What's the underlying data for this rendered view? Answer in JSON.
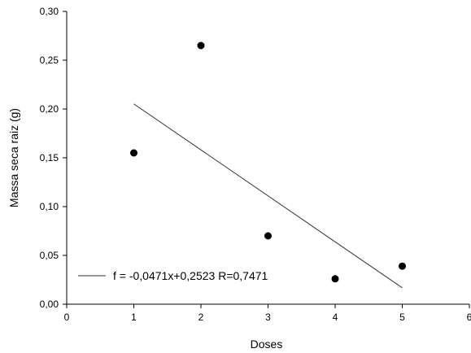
{
  "chart_data": {
    "type": "scatter",
    "xlabel": "Doses",
    "ylabel": "Massa seca raiz (g)",
    "xlim": [
      0,
      6
    ],
    "ylim": [
      0,
      0.3
    ],
    "x_ticks": [
      "0",
      "1",
      "2",
      "3",
      "4",
      "5",
      "6"
    ],
    "y_ticks": [
      "0,00",
      "0,05",
      "0,10",
      "0,15",
      "0,20",
      "0,25",
      "0,30"
    ],
    "points": [
      {
        "x": 1,
        "y": 0.155
      },
      {
        "x": 2,
        "y": 0.265
      },
      {
        "x": 3,
        "y": 0.07
      },
      {
        "x": 4,
        "y": 0.026
      },
      {
        "x": 5,
        "y": 0.039
      }
    ],
    "fit": {
      "slope": -0.0471,
      "intercept": 0.2523,
      "x_range": [
        1,
        5
      ],
      "label": "f = -0,0471x+0,2523  R=0,7471"
    },
    "grid": false,
    "legend": "bottom-left",
    "colors": {
      "marker": "#000000",
      "line": "#333333",
      "axis": "#000000"
    }
  }
}
